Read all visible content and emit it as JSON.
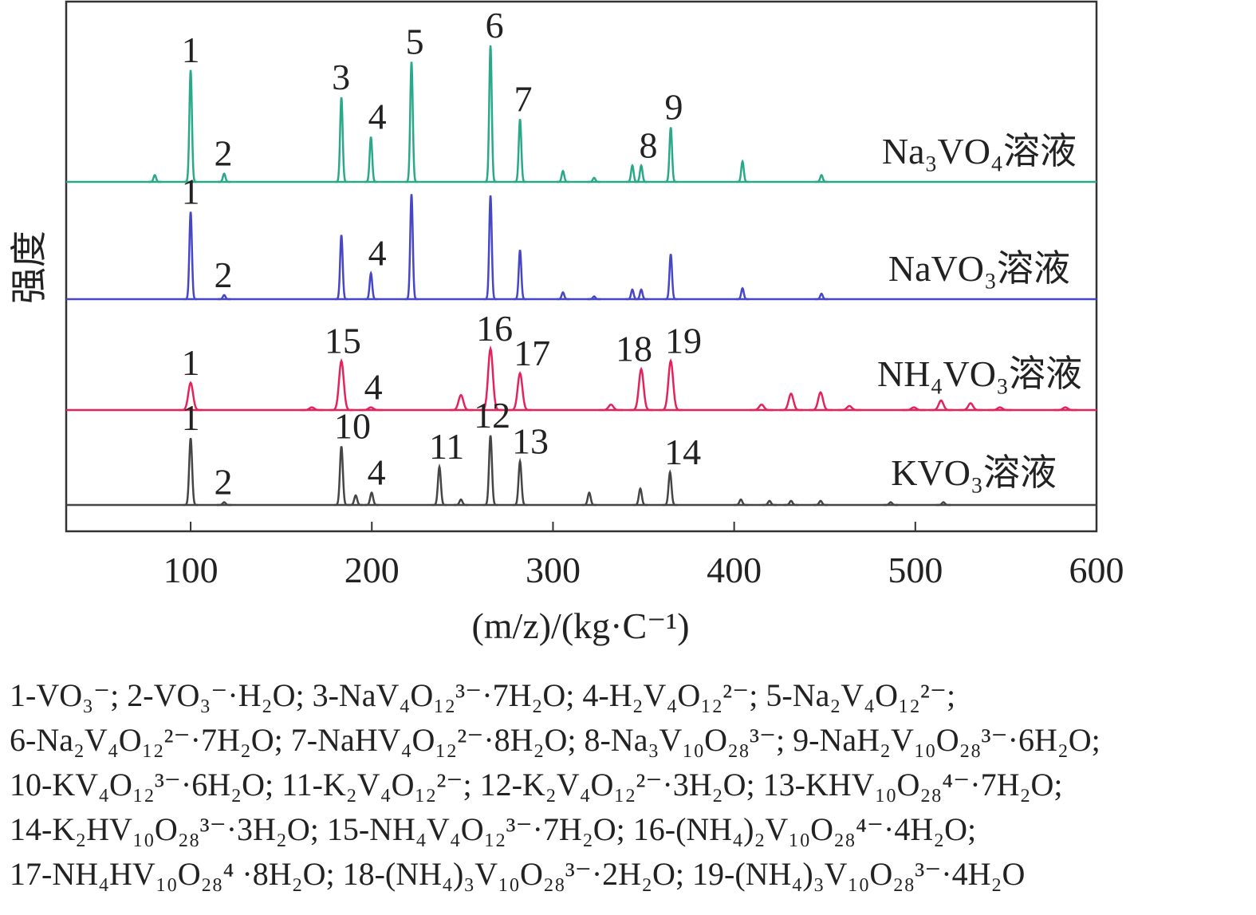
{
  "chart_data": {
    "type": "spectrum-stack",
    "x_label": "(m/z)/(kg·C⁻¹)",
    "y_label": "强度",
    "xlim": [
      31.3,
      600
    ],
    "xticks": [
      100,
      200,
      300,
      400,
      500,
      600
    ],
    "series": [
      {
        "name": "Na₃VO₄溶液",
        "color": "#2aa98a",
        "x": [
          80.2,
          100,
          118.5,
          183.2,
          199.5,
          221.9,
          265.5,
          281.8,
          305.5,
          322.7,
          343.8,
          348.7,
          365,
          404.6,
          448.2
        ],
        "values": [
          5,
          82,
          6,
          62,
          33,
          88,
          100,
          46,
          8,
          3,
          12,
          12,
          40,
          15,
          5
        ],
        "peak_labels": [
          {
            "label": "1",
            "x": 100
          },
          {
            "label": "2",
            "x": 118
          },
          {
            "label": "3",
            "x": 183
          },
          {
            "label": "4",
            "x": 203
          },
          {
            "label": "5",
            "x": 223.7
          },
          {
            "label": "6",
            "x": 267.7
          },
          {
            "label": "7",
            "x": 283.5
          },
          {
            "label": "8",
            "x": 352.6
          },
          {
            "label": "9",
            "x": 366.7
          }
        ]
      },
      {
        "name": "NaVO₃溶液",
        "color": "#4646c6",
        "x": [
          100,
          118.5,
          183.2,
          199.5,
          221.9,
          265.5,
          281.8,
          305.5,
          322.7,
          343.8,
          348.7,
          365,
          404.6,
          448.2
        ],
        "values": [
          64,
          3,
          47,
          19,
          77,
          76,
          36,
          5,
          2,
          7,
          7,
          33,
          8,
          4
        ],
        "peak_labels": [
          {
            "label": "1",
            "x": 100
          },
          {
            "label": "2",
            "x": 118
          },
          {
            "label": "4",
            "x": 203
          }
        ]
      },
      {
        "name": "NH₄VO₃溶液",
        "color": "#e3245c",
        "x": [
          100,
          166.9,
          183.2,
          199.5,
          249.2,
          265.5,
          281.8,
          332,
          348.7,
          365,
          415.1,
          431.4,
          447.7,
          463.6,
          499.2,
          514.2,
          530.5,
          546.7,
          582.8
        ],
        "values": [
          20,
          2,
          36,
          2,
          11,
          45,
          27,
          4,
          30,
          36,
          4,
          12,
          13,
          3,
          2,
          7,
          5,
          2,
          2
        ],
        "peak_labels": [
          {
            "label": "1",
            "x": 100
          },
          {
            "label": "15",
            "x": 184
          },
          {
            "label": "4",
            "x": 200.8
          },
          {
            "label": "16",
            "x": 267.7
          },
          {
            "label": "17",
            "x": 288.4
          },
          {
            "label": "18",
            "x": 344.7
          },
          {
            "label": "19",
            "x": 372
          }
        ]
      },
      {
        "name": "KVO₃溶液",
        "color": "#454545",
        "x": [
          100,
          118.5,
          183.2,
          191.1,
          199.9,
          237.3,
          249.2,
          265.5,
          281.8,
          320,
          348.2,
          364.6,
          403.7,
          419.5,
          431.4,
          447.7,
          486.4,
          515.5
        ],
        "values": [
          49,
          2,
          43,
          7,
          9,
          28,
          4,
          51,
          32,
          9,
          12,
          24,
          4,
          3,
          3,
          3,
          2,
          2
        ],
        "peak_labels": [
          {
            "label": "1",
            "x": 100
          },
          {
            "label": "2",
            "x": 118
          },
          {
            "label": "10",
            "x": 189.3
          },
          {
            "label": "4",
            "x": 202.6
          },
          {
            "label": "11",
            "x": 241.3
          },
          {
            "label": "12",
            "x": 266.4
          },
          {
            "label": "13",
            "x": 287.5
          },
          {
            "label": "14",
            "x": 371.6
          }
        ]
      }
    ],
    "notes": [
      "1-VO₃⁻; 2-VO₃⁻·H₂O; 3-NaV₄O₁₂³⁻·7H₂O; 4-H₂V₄O₁₂²⁻; 5-Na₂V₄O₁₂²⁻;",
      "6-Na₂V₄O₁₂²⁻·7H₂O; 7-NaHV₄O₁₂²⁻·8H₂O; 8-Na₃V₁₀O₂₈³⁻; 9-NaH₂V₁₀O₂₈³⁻·6H₂O;",
      "10-KV₄O₁₂³⁻·6H₂O; 11-K₂V₄O₁₂²⁻; 12-K₂V₄O₁₂²⁻·3H₂O; 13-KHV₁₀O₂₈⁴⁻·7H₂O;",
      "14-K₂HV₁₀O₂₈³⁻·3H₂O; 15-NH₄V₄O₁₂³⁻·7H₂O; 16-(NH₄)₂V₁₀O₂₈⁴⁻·4H₂O;",
      "17-NH₄HV₁₀O₂₈⁴ ·8H₂O; 18-(NH₄)₃V₁₀O₂₈³⁻·2H₂O; 19-(NH₄)₃V₁₀O₂₈³⁻·4H₂O"
    ]
  }
}
